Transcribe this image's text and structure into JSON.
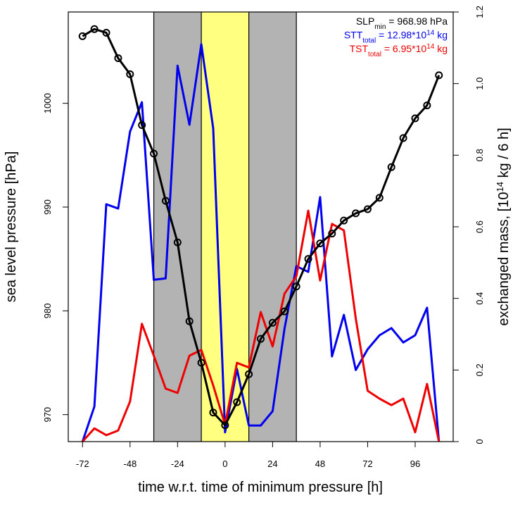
{
  "chart_data": {
    "type": "line",
    "xlabel": "time w.r.t. time of minimum pressure [h]",
    "ylabel": "sea level pressure [hPa]",
    "y2label": [
      {
        "text": "exchanged mass, [10"
      },
      {
        "text": "14",
        "style": "sup"
      },
      {
        "text": " kg / 6 h]"
      }
    ],
    "x": [
      -72,
      -66,
      -60,
      -54,
      -48,
      -42,
      -36,
      -30,
      -24,
      -18,
      -12,
      -6,
      0,
      6,
      12,
      18,
      24,
      30,
      36,
      42,
      48,
      54,
      60,
      66,
      72,
      78,
      84,
      90,
      96,
      102,
      108
    ],
    "xlim": [
      -79.2,
      115.2
    ],
    "xticks": [
      -72,
      -48,
      -24,
      0,
      24,
      48,
      72,
      96
    ],
    "ylim": [
      967.4,
      1008.8
    ],
    "yticks": [
      970,
      980,
      990,
      1000
    ],
    "y2lim": [
      0,
      1.2
    ],
    "y2ticks": [
      0,
      0.2,
      0.4,
      0.6,
      0.8,
      {
        "value": 1,
        "label": "1.0"
      },
      1.2
    ],
    "shaded": [
      {
        "start": -36,
        "end": 36,
        "color": "#b3b3b3"
      },
      {
        "start": -12,
        "end": 12,
        "color": "#ffff80"
      }
    ],
    "series": [
      {
        "legend": [
          {
            "text": "STT"
          },
          {
            "text": "total",
            "style": "sub"
          },
          {
            "text": " = 12.98*10"
          },
          {
            "text": "14",
            "style": "sup"
          },
          {
            "text": " kg"
          }
        ],
        "color": "#0000ee",
        "axis": "y2",
        "markers": false,
        "values": [
          0,
          0.098,
          0.663,
          0.651,
          0.866,
          0.948,
          0.452,
          0.456,
          1.05,
          0.885,
          1.11,
          0.875,
          0.026,
          0.203,
          0.045,
          0.045,
          0.085,
          0.315,
          0.49,
          0.474,
          0.683,
          0.238,
          0.354,
          0.2,
          0.258,
          0.297,
          0.317,
          0.277,
          0.297,
          0.374,
          0
        ]
      },
      {
        "legend": [
          {
            "text": "TST"
          },
          {
            "text": "total",
            "style": "sub"
          },
          {
            "text": " = 6.95*10"
          },
          {
            "text": "14",
            "style": "sup"
          },
          {
            "text": " kg"
          }
        ],
        "color": "#ee0000",
        "axis": "y2",
        "markers": false,
        "values": [
          0,
          0.037,
          0.018,
          0.031,
          0.112,
          0.329,
          0.24,
          0.148,
          0.136,
          0.24,
          0.256,
          0.157,
          0.047,
          0.22,
          0.207,
          0.362,
          0.266,
          0.413,
          0.462,
          0.645,
          0.45,
          0.608,
          0.59,
          0.344,
          0.142,
          0.12,
          0.102,
          0.12,
          0.026,
          0.161,
          0
        ]
      },
      {
        "legend": [
          {
            "text": "SLP"
          },
          {
            "text": "min",
            "style": "sub"
          },
          {
            "text": " = 968.98 hPa"
          }
        ],
        "color": "#000000",
        "axis": "y",
        "markers": true,
        "values": [
          1006.47,
          1007.15,
          1006.8,
          1004.35,
          1002.8,
          997.9,
          995.15,
          990.6,
          986.6,
          979.0,
          975.0,
          970.2,
          968.98,
          971.2,
          973.9,
          977.3,
          978.85,
          979.95,
          982.35,
          985.0,
          986.5,
          987.45,
          988.7,
          989.4,
          989.8,
          990.9,
          993.85,
          996.65,
          998.55,
          999.8,
          1002.7
        ]
      }
    ],
    "legend_order": [
      2,
      0,
      1
    ]
  }
}
